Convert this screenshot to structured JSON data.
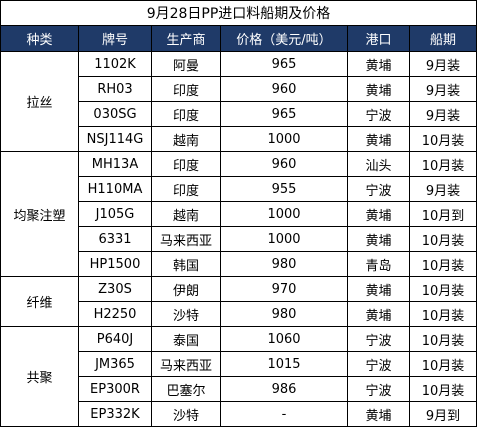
{
  "title": "9月28日PP进口料船期及价格",
  "columns": [
    "种类",
    "牌号",
    "生产商",
    "价格（美元/吨）",
    "港口",
    "船期"
  ],
  "groups": [
    {
      "category": "拉丝",
      "rows": [
        {
          "grade": "1102K",
          "producer": "阿曼",
          "price": "965",
          "port": "黄埔",
          "shipment": "9月装"
        },
        {
          "grade": "RH03",
          "producer": "印度",
          "price": "960",
          "port": "黄埔",
          "shipment": "9月装"
        },
        {
          "grade": "030SG",
          "producer": "印度",
          "price": "965",
          "port": "宁波",
          "shipment": "9月装"
        },
        {
          "grade": "NSJ114G",
          "producer": "越南",
          "price": "1000",
          "port": "黄埔",
          "shipment": "10月装"
        }
      ]
    },
    {
      "category": "均聚注塑",
      "rows": [
        {
          "grade": "MH13A",
          "producer": "印度",
          "price": "960",
          "port": "汕头",
          "shipment": "10月装"
        },
        {
          "grade": "H110MA",
          "producer": "印度",
          "price": "955",
          "port": "宁波",
          "shipment": "9月装"
        },
        {
          "grade": "J105G",
          "producer": "越南",
          "price": "1000",
          "port": "黄埔",
          "shipment": "10月到"
        },
        {
          "grade": "6331",
          "producer": "马来西亚",
          "price": "1000",
          "port": "黄埔",
          "shipment": "10月装"
        },
        {
          "grade": "HP1500",
          "producer": "韩国",
          "price": "980",
          "port": "青岛",
          "shipment": "10月装"
        }
      ]
    },
    {
      "category": "纤维",
      "rows": [
        {
          "grade": "Z30S",
          "producer": "伊朗",
          "price": "970",
          "port": "黄埔",
          "shipment": "10月装"
        },
        {
          "grade": "H2250",
          "producer": "沙特",
          "price": "980",
          "port": "黄埔",
          "shipment": "10月装"
        }
      ]
    },
    {
      "category": "共聚",
      "rows": [
        {
          "grade": "P640J",
          "producer": "泰国",
          "price": "1060",
          "port": "宁波",
          "shipment": "10月装"
        },
        {
          "grade": "JM365",
          "producer": "马来西亚",
          "price": "1015",
          "port": "宁波",
          "shipment": "10月装"
        },
        {
          "grade": "EP300R",
          "producer": "巴塞尔",
          "price": "986",
          "port": "宁波",
          "shipment": "10月装"
        },
        {
          "grade": "EP332K",
          "producer": "沙特",
          "price": "-",
          "port": "黄埔",
          "shipment": "9月到"
        }
      ]
    }
  ],
  "colors": {
    "header_bg": "#1f3a68",
    "header_text": "#ffffff",
    "border": "#000000"
  }
}
